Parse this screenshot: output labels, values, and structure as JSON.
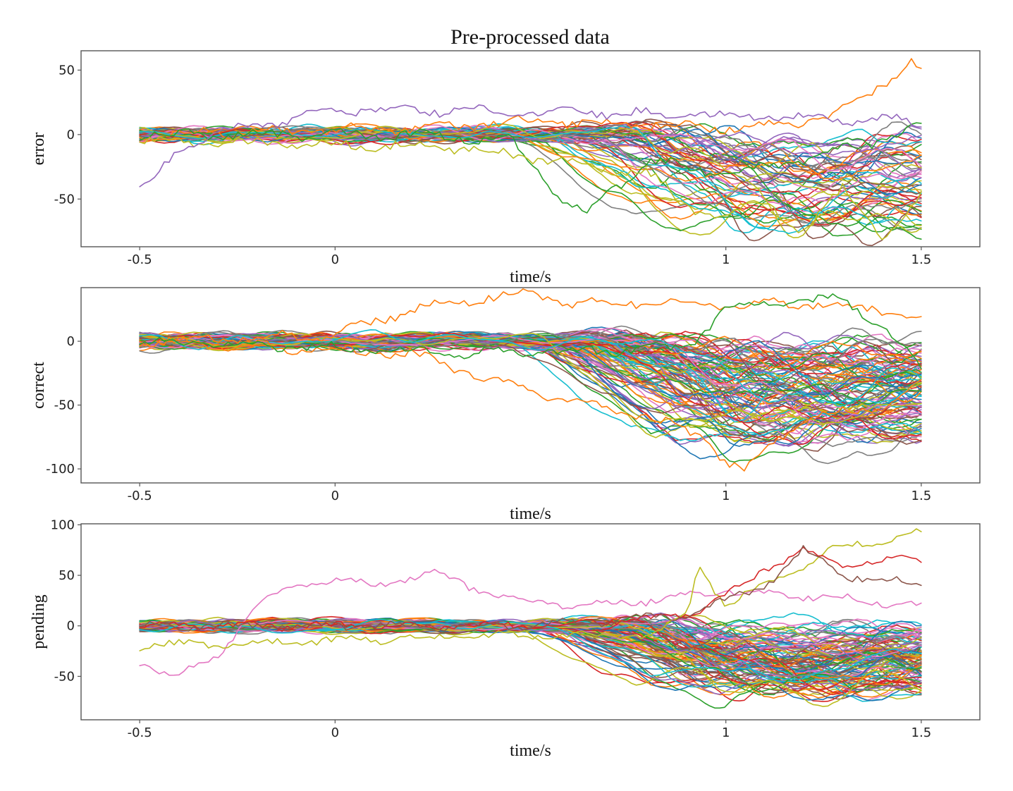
{
  "title": "Pre-processed data",
  "palette": [
    "#1f77b4",
    "#ff7f0e",
    "#2ca02c",
    "#d62728",
    "#9467bd",
    "#8c564b",
    "#e377c2",
    "#7f7f7f",
    "#bcbd22",
    "#17becf"
  ],
  "chart_data": [
    {
      "type": "line",
      "name": "error",
      "ylabel": "error",
      "xlabel": "time/s",
      "xlim": [
        -0.65,
        1.65
      ],
      "ylim": [
        -87,
        65
      ],
      "xticks": [
        -0.5,
        0,
        1,
        1.5
      ],
      "xtick_labels": [
        "-0.5",
        "0",
        "1",
        "1.5"
      ],
      "yticks": [
        50,
        0,
        -50
      ],
      "ytick_labels": [
        "50",
        "0",
        "-50"
      ],
      "x_range": [
        -0.5,
        1.5
      ],
      "n_series": 60,
      "series_summary": "Noisy EEG-like traces near 0 from -0.5 s to about 0.4 s, then most traces dip to between -30 and -80 between 0.8 s and 1.4 s; one orange trace rises to about 58 at 1.48 s.",
      "highlight_series": [
        {
          "name": "orange-rising",
          "color": "#ff7f0e",
          "x": [
            -0.5,
            0.2,
            0.5,
            0.8,
            1.0,
            1.2,
            1.3,
            1.38,
            1.45,
            1.48,
            1.5
          ],
          "y": [
            0,
            5,
            10,
            8,
            5,
            10,
            18,
            35,
            50,
            58,
            47
          ]
        },
        {
          "name": "green-early-dip",
          "color": "#2ca02c",
          "x": [
            -0.5,
            0.2,
            0.45,
            0.5,
            0.55,
            0.6,
            0.65,
            0.7,
            0.8,
            1.0,
            1.2,
            1.5
          ],
          "y": [
            0,
            0,
            -5,
            -20,
            -40,
            -55,
            -62,
            -45,
            -20,
            -30,
            -20,
            5
          ]
        },
        {
          "name": "olive-deep-dip",
          "color": "#bcbd22",
          "x": [
            -0.5,
            0.3,
            0.8,
            0.9,
            1.0,
            1.1,
            1.2,
            1.3,
            1.4,
            1.45,
            1.5
          ],
          "y": [
            -5,
            -10,
            -30,
            -55,
            -65,
            -50,
            -78,
            -40,
            -80,
            -70,
            -45
          ]
        },
        {
          "name": "violet-start-low",
          "color": "#9467bd",
          "x": [
            -0.5,
            -0.45,
            -0.4,
            -0.3,
            0.0,
            0.5,
            1.0,
            1.5
          ],
          "y": [
            -44,
            -30,
            -10,
            0,
            20,
            18,
            15,
            10
          ]
        }
      ]
    },
    {
      "type": "line",
      "name": "correct",
      "ylabel": "correct",
      "xlabel": "time/s",
      "xlim": [
        -0.65,
        1.65
      ],
      "ylim": [
        -111,
        42
      ],
      "xticks": [
        -0.5,
        0,
        1,
        1.5
      ],
      "xtick_labels": [
        "-0.5",
        "0",
        "1",
        "1.5"
      ],
      "yticks": [
        0,
        -50,
        -100
      ],
      "ytick_labels": [
        "0",
        "-50",
        "-100"
      ],
      "x_range": [
        -0.5,
        1.5
      ],
      "n_series": 110,
      "series_summary": "Dense band of traces near 0 until about 0.5 s, then spreading down to between -40 and -90 from 0.7 s to 1.5 s; one orange trace stays high near 35, another orange trace dips to about -103 near 1.05 s.",
      "highlight_series": [
        {
          "name": "orange-high",
          "color": "#ff7f0e",
          "x": [
            -0.5,
            0.0,
            0.2,
            0.4,
            0.5,
            0.6,
            0.8,
            1.0,
            1.2,
            1.4,
            1.5
          ],
          "y": [
            0,
            5,
            25,
            35,
            38,
            30,
            30,
            28,
            30,
            25,
            18
          ]
        },
        {
          "name": "orange-low",
          "color": "#ff7f0e",
          "x": [
            -0.5,
            0.2,
            0.5,
            0.8,
            0.95,
            1.0,
            1.05,
            1.1,
            1.2,
            1.4,
            1.5
          ],
          "y": [
            0,
            -10,
            -40,
            -60,
            -75,
            -95,
            -103,
            -85,
            -60,
            -50,
            -35
          ]
        },
        {
          "name": "green-high-late",
          "color": "#2ca02c",
          "x": [
            -0.5,
            0.4,
            0.9,
            1.0,
            1.1,
            1.2,
            1.3,
            1.4,
            1.5
          ],
          "y": [
            0,
            -10,
            -5,
            25,
            32,
            30,
            35,
            10,
            -20
          ]
        }
      ]
    },
    {
      "type": "line",
      "name": "pending",
      "ylabel": "pending",
      "xlabel": "time/s",
      "xlim": [
        -0.65,
        1.65
      ],
      "ylim": [
        -93,
        101
      ],
      "xticks": [
        -0.5,
        0,
        1,
        1.5
      ],
      "xtick_labels": [
        "-0.5",
        "0",
        "1",
        "1.5"
      ],
      "yticks": [
        100,
        50,
        0,
        -50
      ],
      "ytick_labels": [
        "100",
        "50",
        "0",
        "-50"
      ],
      "x_range": [
        -0.5,
        1.5
      ],
      "n_series": 110,
      "series_summary": "Traces near 0 until about 0.5 s, then spreading between -80 and 20; a pink trace rises to about 50 between 0.0 and 0.3 s; an olive trace oscillates up to about 92 near 1.5 s; red and brown traces rise to 40-75.",
      "highlight_series": [
        {
          "name": "pink-hump",
          "color": "#e377c2",
          "x": [
            -0.5,
            -0.4,
            -0.3,
            -0.2,
            -0.1,
            0.0,
            0.1,
            0.27,
            0.4,
            0.6,
            0.8,
            1.0,
            1.2,
            1.5
          ],
          "y": [
            -35,
            -50,
            -30,
            20,
            40,
            45,
            40,
            52,
            30,
            20,
            25,
            35,
            30,
            20
          ]
        },
        {
          "name": "olive-oscillating",
          "color": "#bcbd22",
          "x": [
            -0.5,
            0.4,
            0.8,
            0.9,
            0.93,
            1.0,
            1.1,
            1.2,
            1.3,
            1.4,
            1.5
          ],
          "y": [
            -20,
            -10,
            -10,
            10,
            60,
            20,
            40,
            60,
            80,
            85,
            92
          ]
        },
        {
          "name": "red-high",
          "color": "#d62728",
          "x": [
            -0.5,
            0.5,
            0.9,
            1.0,
            1.1,
            1.2,
            1.3,
            1.4,
            1.5
          ],
          "y": [
            0,
            0,
            10,
            30,
            55,
            75,
            60,
            65,
            65
          ]
        },
        {
          "name": "brown-high",
          "color": "#8c564b",
          "x": [
            -0.5,
            0.5,
            0.9,
            1.0,
            1.1,
            1.2,
            1.3,
            1.4,
            1.5
          ],
          "y": [
            0,
            0,
            10,
            25,
            40,
            75,
            50,
            45,
            42
          ]
        }
      ]
    }
  ]
}
